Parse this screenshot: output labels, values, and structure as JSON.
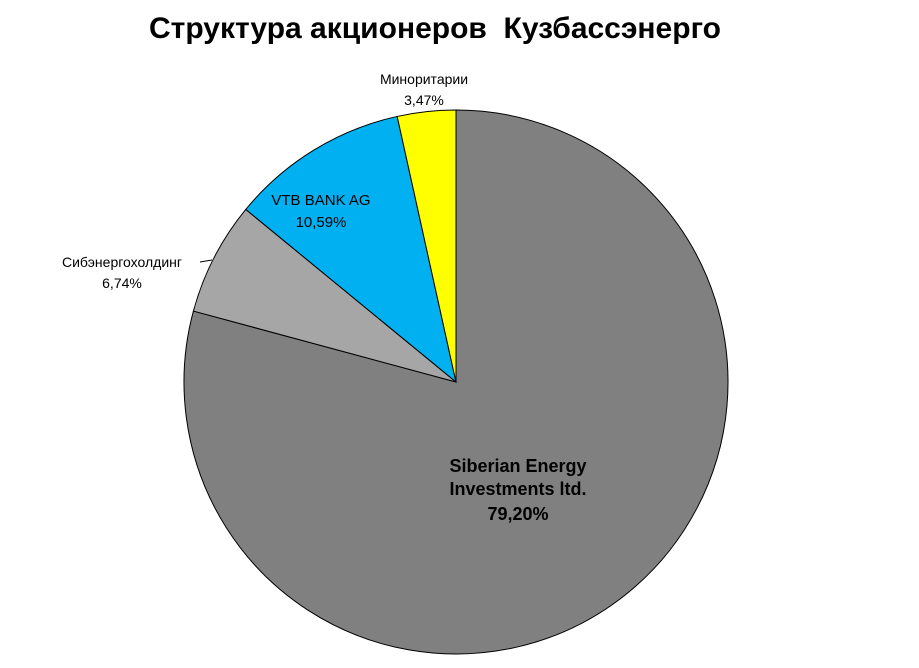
{
  "chart_data": {
    "type": "pie",
    "title": "Структура акционеров  Кузбассэнерго",
    "categories": [
      "Siberian Energy Investments ltd.",
      "Сибэнергохолдинг",
      "VTB BANK AG",
      "Миноритарии"
    ],
    "values": [
      79.2,
      6.74,
      10.59,
      3.47
    ],
    "value_labels": [
      "79,20%",
      "6,74%",
      "10,59%",
      "3,47%"
    ],
    "colors": [
      "#808080",
      "#a6a6a6",
      "#00b0f0",
      "#ffff00"
    ]
  }
}
